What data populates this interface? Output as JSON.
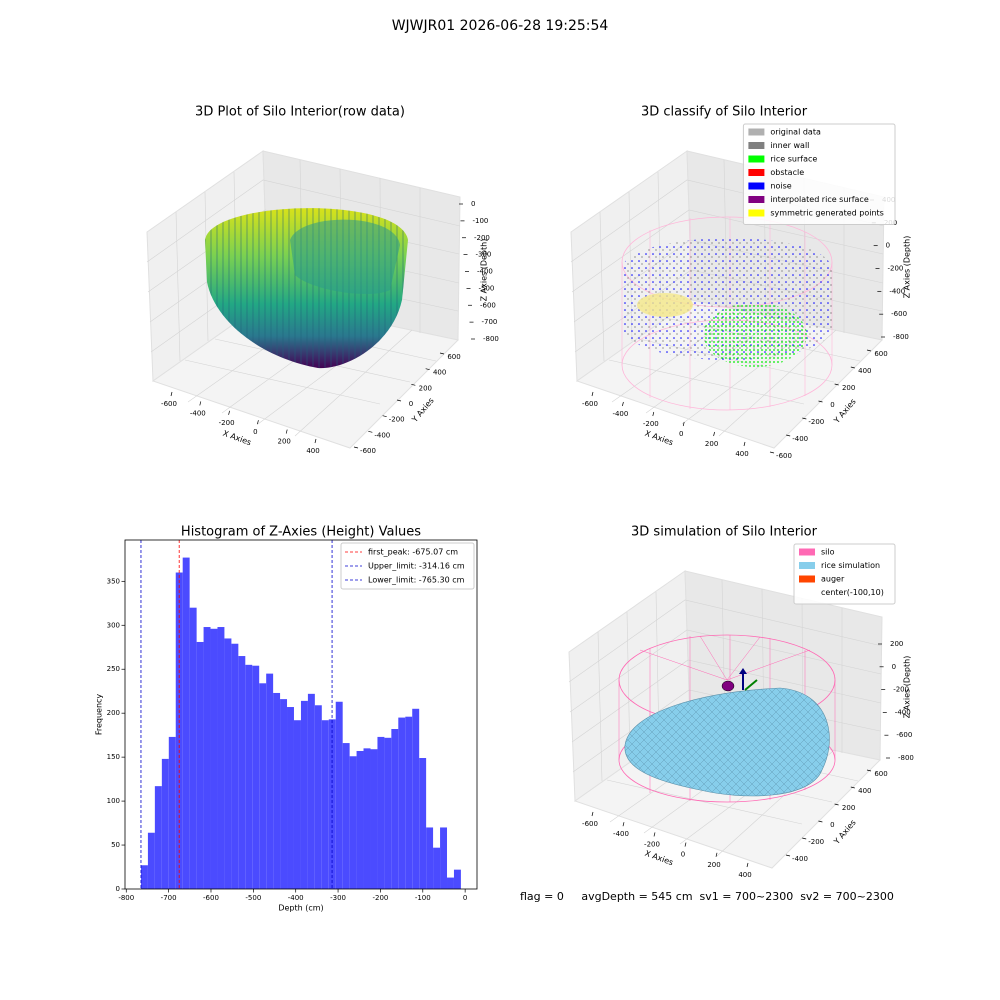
{
  "suptitle": "WJWJR01 2026-06-28 19:25:54",
  "chart_data": [
    {
      "type": "scatter3d",
      "title": "3D Plot of Silo Interior(row data)",
      "xlabel": "X Axies",
      "ylabel": "Y Axies",
      "zlabel": "Z Axies (Depth)",
      "xticks": [
        -600,
        -400,
        -200,
        0,
        200,
        400
      ],
      "yticks": [
        -600,
        -400,
        -200,
        0,
        200,
        400,
        600
      ],
      "zticks": [
        0,
        -100,
        -200,
        -300,
        -400,
        -500,
        -600,
        -700,
        -800
      ]
    },
    {
      "type": "scatter3d",
      "title": "3D classify of Silo Interior",
      "xlabel": "X Axies",
      "ylabel": "Y Axies",
      "zlabel": "Z Axies (Depth)",
      "xticks": [
        -600,
        -400,
        -200,
        0,
        200,
        400
      ],
      "yticks": [
        -600,
        -400,
        -200,
        0,
        200,
        400,
        600
      ],
      "zticks": [
        400,
        200,
        0,
        -200,
        -400,
        -600,
        -800
      ],
      "legend": {
        "position": "upper right",
        "entries": [
          {
            "name": "original data",
            "color": "#b0b0b0"
          },
          {
            "name": "inner wall",
            "color": "#808080"
          },
          {
            "name": "rice surface",
            "color": "#00ff00"
          },
          {
            "name": "obstacle",
            "color": "#ff0000"
          },
          {
            "name": "noise",
            "color": "#0000ff"
          },
          {
            "name": "interpolated rice surface",
            "color": "#800080"
          },
          {
            "name": "symmetric generated points",
            "color": "#ffff00"
          }
        ]
      }
    },
    {
      "type": "histogram",
      "title": "Histogram of Z-Axies (Height) Values",
      "xlabel": "Depth (cm)",
      "ylabel": "Frequency",
      "color": "#4b4bff",
      "bins": [
        -765.3,
        -748.9,
        -732.5,
        -716.0,
        -699.6,
        -683.2,
        -666.8,
        -650.4,
        -633.9,
        -617.5,
        -601.1,
        -584.7,
        -568.3,
        -551.8,
        -535.4,
        -519.0,
        -502.6,
        -486.2,
        -469.7,
        -453.3,
        -436.9,
        -420.5,
        -404.1,
        -387.6,
        -371.2,
        -354.8,
        -338.4,
        -322.0,
        -305.5,
        -289.1,
        -272.7,
        -256.3,
        -239.9,
        -223.4,
        -207.0,
        -190.6,
        -174.2,
        -157.8,
        -141.3,
        -124.9,
        -108.5,
        -92.1,
        -75.7,
        -59.2,
        -42.8,
        -26.4,
        -10.0
      ],
      "values": [
        27,
        64,
        117,
        148,
        173,
        360,
        377,
        320,
        281,
        298,
        296,
        298,
        285,
        279,
        265,
        255,
        254,
        234,
        245,
        223,
        216,
        207,
        192,
        214,
        222,
        209,
        192,
        193,
        213,
        166,
        151,
        157,
        160,
        159,
        173,
        172,
        182,
        195,
        196,
        205,
        149,
        70,
        47,
        70,
        13,
        22
      ],
      "xlim": [
        -803,
        28
      ],
      "ylim": [
        0,
        397
      ],
      "xticks": [
        -800,
        -700,
        -600,
        -500,
        -400,
        -300,
        -200,
        -100,
        0
      ],
      "yticks": [
        0,
        50,
        100,
        150,
        200,
        250,
        300,
        350
      ],
      "vlines": [
        {
          "name": "first_peak: -675.07 cm",
          "value": -675.07,
          "color": "#ff0000"
        },
        {
          "name": "Upper_limit: -314.16 cm",
          "value": -314.16,
          "color": "#0000cc"
        },
        {
          "name": "Lower_limit: -765.30 cm",
          "value": -765.3,
          "color": "#0000cc"
        }
      ],
      "legend": {
        "position": "upper right"
      }
    },
    {
      "type": "surface3d",
      "title": "3D simulation of Silo Interior",
      "xlabel": "X Axies",
      "ylabel": "Y Axies",
      "zlabel": "Z Axies (Depth)",
      "xticks": [
        -600,
        -400,
        -200,
        0,
        200,
        400
      ],
      "yticks": [
        -400,
        -200,
        0,
        200,
        400,
        600
      ],
      "zticks": [
        200,
        0,
        -200,
        -400,
        -600,
        -800
      ],
      "legend": {
        "position": "upper right",
        "entries": [
          {
            "name": "silo",
            "color": "#ff69b4"
          },
          {
            "name": "rice simulation",
            "color": "#87ceeb"
          },
          {
            "name": "auger",
            "color": "#ff4500"
          },
          {
            "name": "center(-100,10)",
            "color": null
          }
        ]
      }
    }
  ],
  "footer_text": "flag = 0     avgDepth = 545 cm  sv1 = 700~2300  sv2 = 700~2300"
}
